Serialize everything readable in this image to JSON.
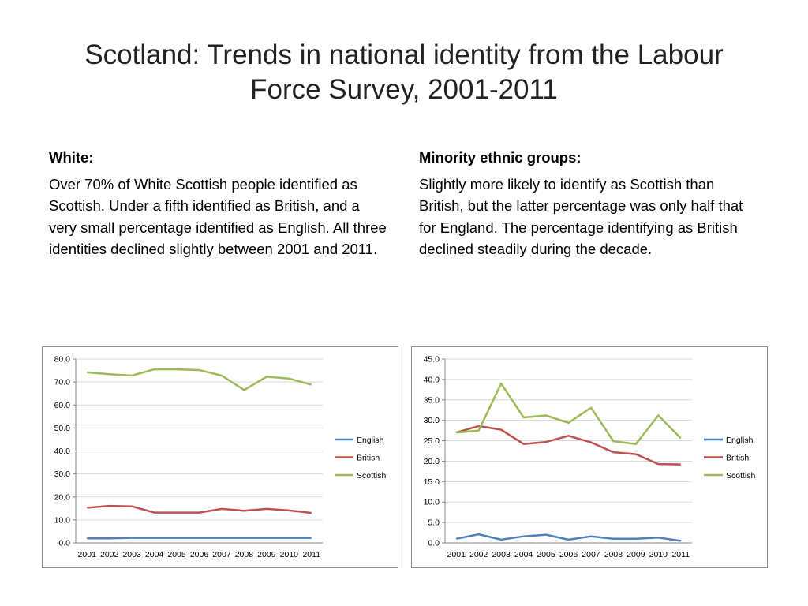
{
  "title": {
    "line1": "Scotland: Trends in national identity from the Labour",
    "line2": "Force Survey, 2001-2011"
  },
  "left_column": {
    "heading": "White:",
    "body": "Over 70% of White Scottish people identified as Scottish. Under a fifth identified as British, and a very small percentage identified as English. All three identities declined slightly between 2001 and 2011."
  },
  "right_column": {
    "heading": "Minority ethnic groups:",
    "body": "Slightly more likely to identify as Scottish than British, but the latter percentage was only half that for England. The percentage identifying as British declined steadily during the decade."
  },
  "chart_data": [
    {
      "type": "line",
      "title": "",
      "xlabel": "",
      "ylabel": "",
      "categories": [
        "2001",
        "2002",
        "2003",
        "2004",
        "2005",
        "2006",
        "2007",
        "2008",
        "2009",
        "2010",
        "2011"
      ],
      "ylim": [
        0,
        80
      ],
      "ytick_step": 10,
      "ytick_labels": [
        "0.0",
        "10.0",
        "20.0",
        "30.0",
        "40.0",
        "50.0",
        "60.0",
        "70.0",
        "80.0"
      ],
      "grid": true,
      "legend": "right",
      "series": [
        {
          "name": "English",
          "color": "#4f81bd",
          "values": [
            2.0,
            2.0,
            2.2,
            2.2,
            2.2,
            2.2,
            2.2,
            2.2,
            2.2,
            2.2,
            2.2
          ]
        },
        {
          "name": "British",
          "color": "#c0504d",
          "values": [
            15.3,
            16.1,
            15.9,
            13.2,
            13.2,
            13.2,
            14.8,
            14.0,
            14.8,
            14.1,
            13.0
          ]
        },
        {
          "name": "Scottish",
          "color": "#9bbb59",
          "values": [
            74.2,
            73.4,
            72.8,
            75.5,
            75.5,
            75.2,
            72.8,
            66.5,
            72.3,
            71.5,
            68.8
          ]
        }
      ]
    },
    {
      "type": "line",
      "title": "",
      "xlabel": "",
      "ylabel": "",
      "categories": [
        "2001",
        "2002",
        "2003",
        "2004",
        "2005",
        "2006",
        "2007",
        "2008",
        "2009",
        "2010",
        "2011"
      ],
      "ylim": [
        0,
        45
      ],
      "ytick_step": 5,
      "ytick_labels": [
        "0.0",
        "5.0",
        "10.0",
        "15.0",
        "20.0",
        "25.0",
        "30.0",
        "35.0",
        "40.0",
        "45.0"
      ],
      "grid": true,
      "legend": "right",
      "series": [
        {
          "name": "English",
          "color": "#4f81bd",
          "values": [
            1.0,
            2.1,
            0.8,
            1.6,
            2.0,
            0.8,
            1.6,
            1.0,
            1.0,
            1.3,
            0.5
          ]
        },
        {
          "name": "British",
          "color": "#c0504d",
          "values": [
            27.0,
            28.6,
            27.7,
            24.2,
            24.7,
            26.2,
            24.6,
            22.2,
            21.7,
            19.3,
            19.2
          ]
        },
        {
          "name": "Scottish",
          "color": "#9bbb59",
          "values": [
            27.0,
            27.5,
            39.0,
            30.7,
            31.2,
            29.4,
            33.1,
            24.9,
            24.2,
            31.2,
            25.6
          ]
        }
      ]
    }
  ]
}
